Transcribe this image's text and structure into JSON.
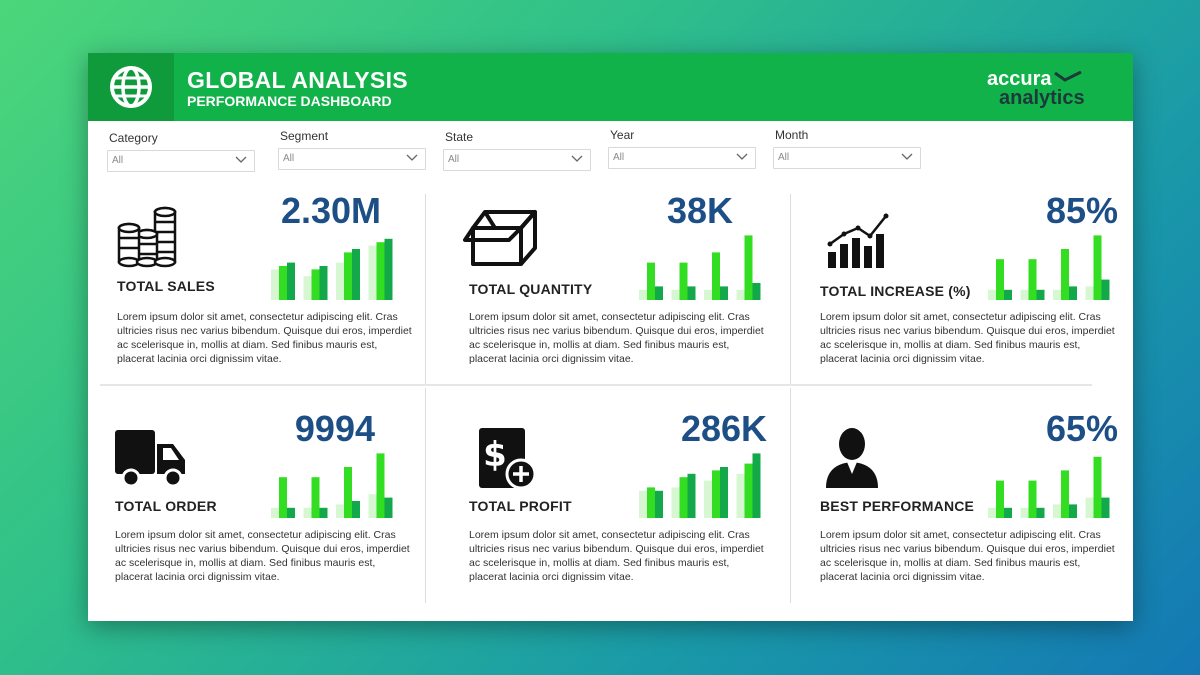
{
  "header": {
    "title": "GLOBAL ANALYSIS",
    "subtitle": "PERFORMANCE DASHBOARD",
    "logo_line1": "accura",
    "logo_line2": "analytics",
    "icon": "globe-icon"
  },
  "filters": [
    {
      "label": "Category",
      "value": "All"
    },
    {
      "label": "Segment",
      "value": "All"
    },
    {
      "label": "State",
      "value": "All"
    },
    {
      "label": "Year",
      "value": "All"
    },
    {
      "label": "Month",
      "value": "All"
    }
  ],
  "colors": {
    "header_green": "#12b24a",
    "value_blue": "#1d4f86",
    "bar_pale": "#d6f7d2",
    "bar_bright": "#33dd22",
    "bar_dark": "#13a84a"
  },
  "cards": [
    {
      "label": "TOTAL SALES",
      "value": "2.30M",
      "icon": "coins-icon",
      "desc": "Lorem ipsum dolor sit amet, consectetur adipiscing elit. Cras ultricies risus nec varius bibendum. Quisque dui eros, imperdiet ac scelerisque in, mollis at diam. Sed finibus mauris est, placerat lacinia orci dignissim vitae."
    },
    {
      "label": "TOTAL QUANTITY",
      "value": "38K",
      "icon": "box-icon",
      "desc": "Lorem ipsum dolor sit amet, consectetur adipiscing elit. Cras ultricies risus nec varius bibendum. Quisque dui eros, imperdiet ac scelerisque in, mollis at diam. Sed finibus mauris est, placerat lacinia orci dignissim vitae."
    },
    {
      "label": "TOTAL INCREASE (%)",
      "value": "85%",
      "icon": "growth-chart-icon",
      "desc": "Lorem ipsum dolor sit amet, consectetur adipiscing elit. Cras ultricies risus nec varius bibendum. Quisque dui eros, imperdiet ac scelerisque in, mollis at diam. Sed finibus mauris est, placerat lacinia orci dignissim vitae."
    },
    {
      "label": "TOTAL ORDER",
      "value": "9994",
      "icon": "truck-icon",
      "desc": "Lorem ipsum dolor sit amet, consectetur adipiscing elit. Cras ultricies risus nec varius bibendum. Quisque dui eros, imperdiet ac scelerisque in, mollis at diam. Sed finibus mauris est, placerat lacinia orci dignissim vitae."
    },
    {
      "label": "TOTAL PROFIT",
      "value": "286K",
      "icon": "dollar-plus-icon",
      "desc": "Lorem ipsum dolor sit amet, consectetur adipiscing elit. Cras ultricies risus nec varius bibendum. Quisque dui eros, imperdiet ac scelerisque in, mollis at diam. Sed finibus mauris est, placerat lacinia orci dignissim vitae."
    },
    {
      "label": "BEST PERFORMANCE",
      "value": "65%",
      "icon": "person-icon",
      "desc": "Lorem ipsum dolor sit amet, consectetur adipiscing elit. Cras ultricies risus nec varius bibendum. Quisque dui eros, imperdiet ac scelerisque in, mollis at diam. Sed finibus mauris est, placerat lacinia orci dignissim vitae."
    }
  ],
  "chart_data": [
    {
      "type": "bar",
      "series": [
        {
          "values": [
            0.45,
            0.35,
            0.55,
            0.8
          ]
        },
        {
          "values": [
            0.5,
            0.45,
            0.7,
            0.85
          ]
        },
        {
          "values": [
            0.55,
            0.5,
            0.75,
            0.9
          ]
        }
      ]
    },
    {
      "type": "bar",
      "series": [
        {
          "values": [
            0.15,
            0.15,
            0.15,
            0.15
          ]
        },
        {
          "values": [
            0.55,
            0.55,
            0.7,
            0.95
          ]
        },
        {
          "values": [
            0.2,
            0.2,
            0.2,
            0.25
          ]
        }
      ]
    },
    {
      "type": "bar",
      "series": [
        {
          "values": [
            0.15,
            0.15,
            0.15,
            0.2
          ]
        },
        {
          "values": [
            0.6,
            0.6,
            0.75,
            0.95
          ]
        },
        {
          "values": [
            0.15,
            0.15,
            0.2,
            0.3
          ]
        }
      ]
    },
    {
      "type": "bar",
      "series": [
        {
          "values": [
            0.15,
            0.15,
            0.2,
            0.35
          ]
        },
        {
          "values": [
            0.6,
            0.6,
            0.75,
            0.95
          ]
        },
        {
          "values": [
            0.15,
            0.15,
            0.25,
            0.3
          ]
        }
      ]
    },
    {
      "type": "bar",
      "series": [
        {
          "values": [
            0.4,
            0.45,
            0.55,
            0.65
          ]
        },
        {
          "values": [
            0.45,
            0.6,
            0.7,
            0.8
          ]
        },
        {
          "values": [
            0.4,
            0.65,
            0.75,
            0.95
          ]
        }
      ]
    },
    {
      "type": "bar",
      "series": [
        {
          "values": [
            0.15,
            0.15,
            0.2,
            0.3
          ]
        },
        {
          "values": [
            0.55,
            0.55,
            0.7,
            0.9
          ]
        },
        {
          "values": [
            0.15,
            0.15,
            0.2,
            0.3
          ]
        }
      ]
    }
  ]
}
